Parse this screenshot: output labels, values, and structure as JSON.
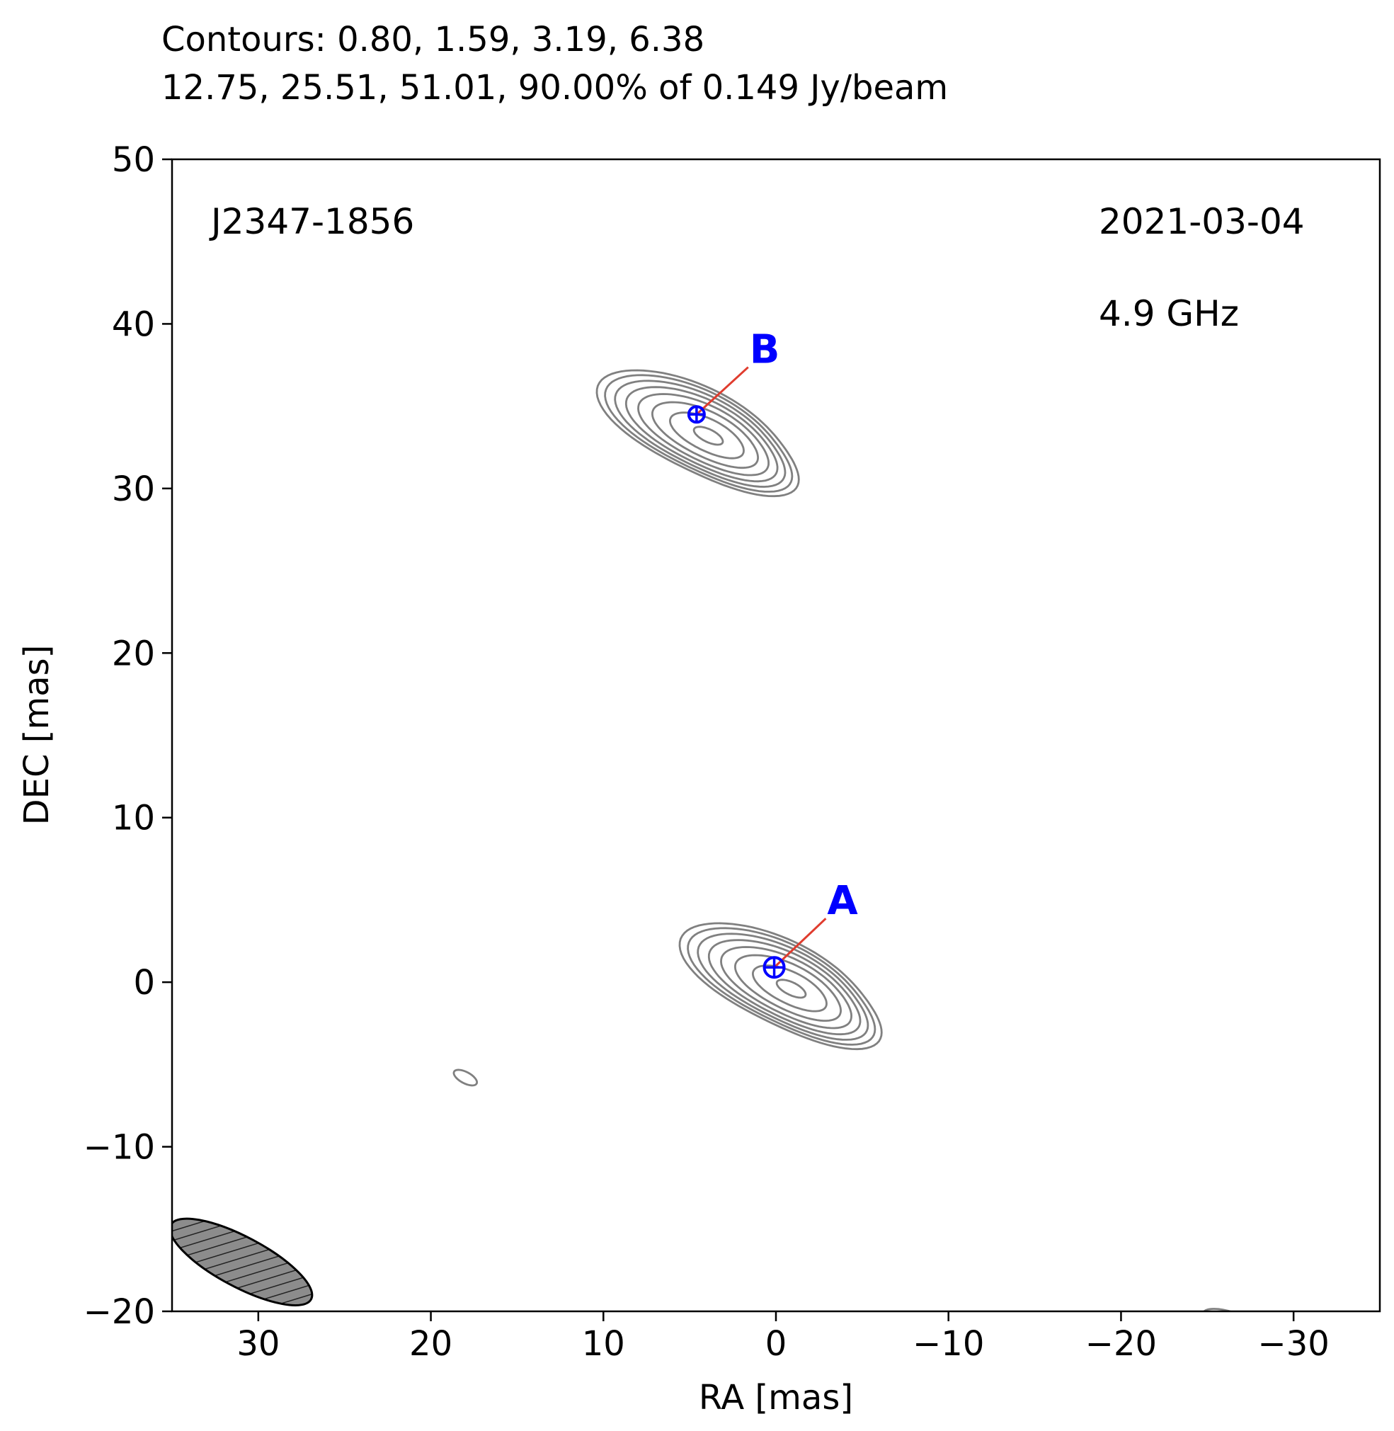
{
  "chart_data": {
    "type": "contour",
    "title_line1": "Contours: 0.80, 1.59, 3.19, 6.38",
    "title_line2": "12.75, 25.51, 51.01, 90.00% of 0.149 Jy/beam",
    "contour_levels_percent": [
      0.8,
      1.59,
      3.19,
      6.38,
      12.75,
      25.51,
      51.01,
      90.0
    ],
    "peak_flux": "0.149 Jy/beam",
    "source_name": "J2347-1856",
    "date": "2021-03-04",
    "frequency": "4.9 GHz",
    "xlabel": "RA [mas]",
    "ylabel": "DEC [mas]",
    "xlim": [
      35,
      -35
    ],
    "ylim": [
      -20,
      50
    ],
    "xticks": [
      30,
      20,
      10,
      0,
      -10,
      -20,
      -30
    ],
    "yticks": [
      -20,
      -10,
      0,
      10,
      20,
      30,
      40,
      50
    ],
    "xtick_labels": [
      "30",
      "20",
      "10",
      "0",
      "−10",
      "−20",
      "−30"
    ],
    "ytick_labels": [
      "−20",
      "−10",
      "0",
      "10",
      "20",
      "30",
      "40",
      "50"
    ],
    "components": [
      {
        "label": "A",
        "ra": 0.1,
        "dec": 0.9,
        "label_ra": -3.3,
        "label_dec": 4.3,
        "center_ra": -0.9,
        "center_dec": -0.4
      },
      {
        "label": "B",
        "ra": 4.6,
        "dec": 34.5,
        "label_ra": 1.2,
        "label_dec": 37.8,
        "center_ra": 3.9,
        "center_dec": 33.2
      }
    ],
    "source_extent_mas": {
      "semi_major": 6.2,
      "semi_minor": 2.6,
      "pa_deg": 63
    },
    "noise_features": [
      {
        "ra": 18.0,
        "dec": -5.8
      },
      {
        "ra": -25.5,
        "dec": -20.2
      }
    ],
    "beam": {
      "ra": 31.0,
      "dec": -17.0,
      "major": 4.6,
      "minor": 1.6,
      "pa_deg": 62
    },
    "colors": {
      "contours": "#808080",
      "component_markers": "#0000ff",
      "connector": "#e03c2e",
      "beam_fill": "#8c8c8c"
    }
  }
}
